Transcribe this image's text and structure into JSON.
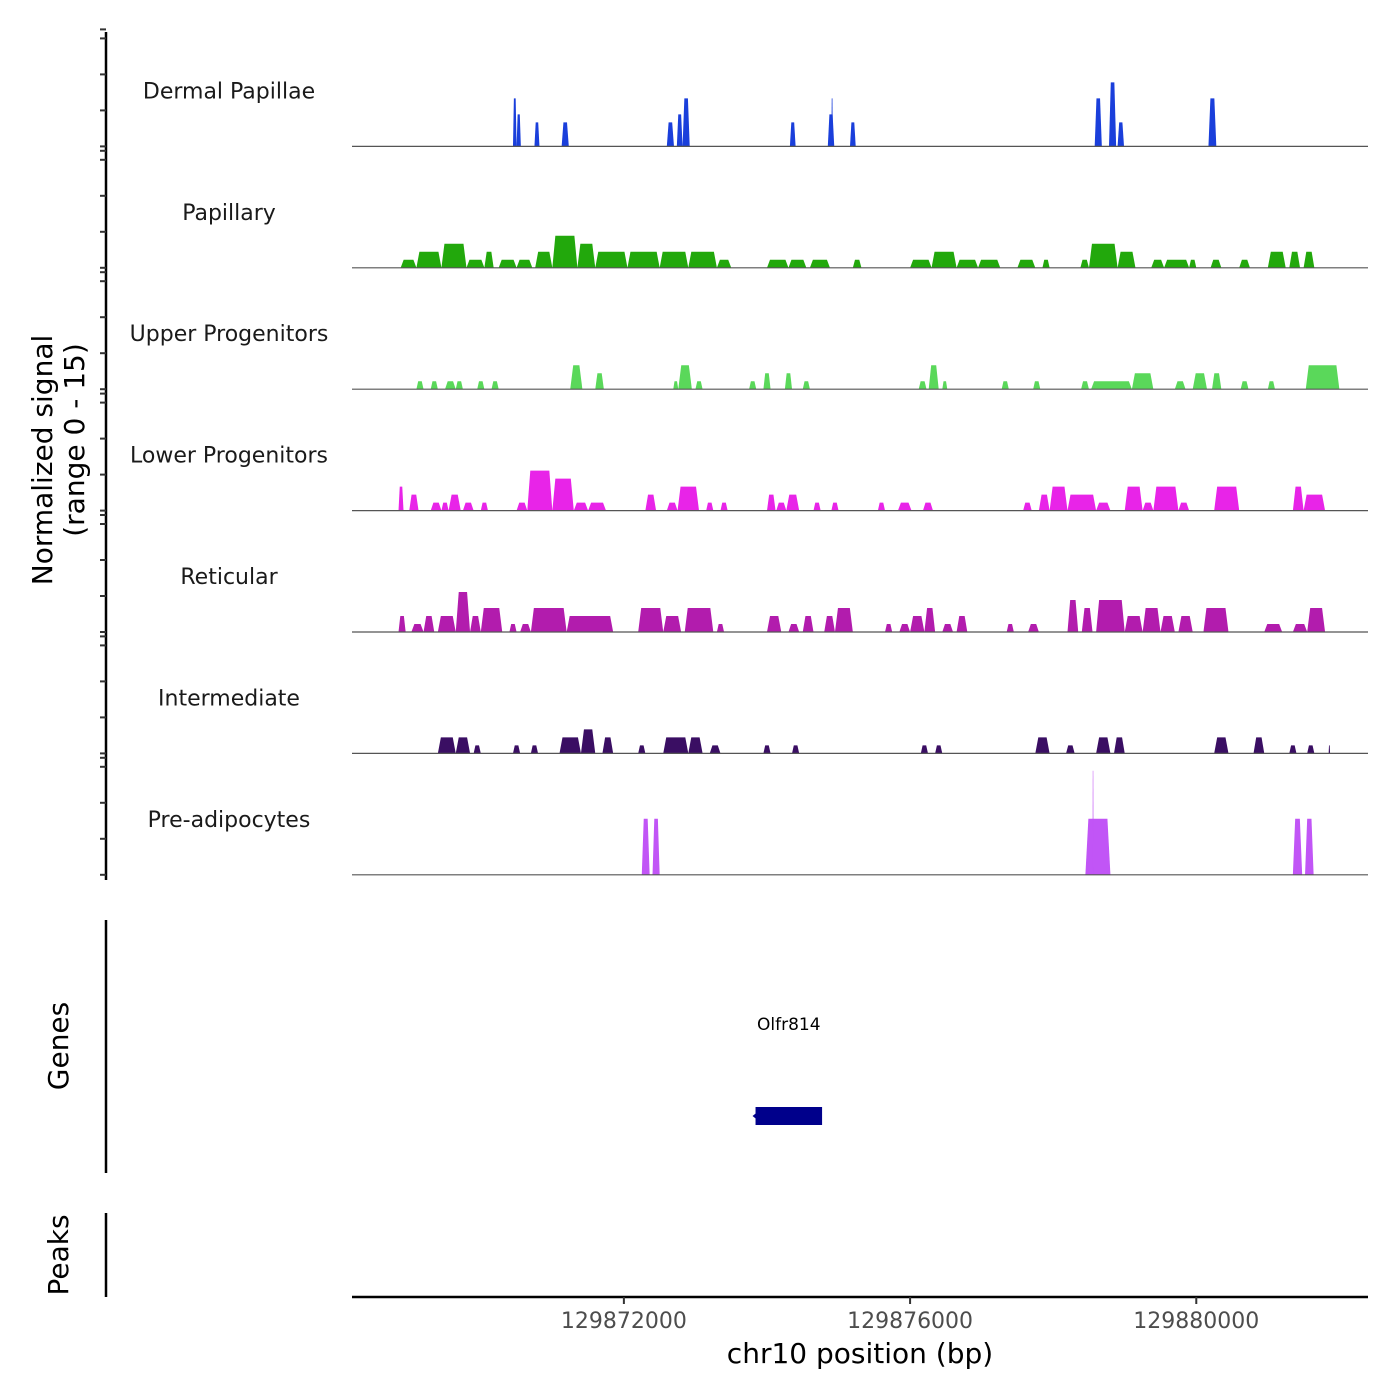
{
  "chart_data": {
    "type": "area",
    "title": "",
    "xlabel": "chr10 position (bp)",
    "ylabel": "Normalized signal\n(range 0 - 15)",
    "ylabel_lines": [
      "Normalized signal",
      "(range 0 - 15)"
    ],
    "ylim": [
      0,
      15
    ],
    "xlim": [
      129868200,
      129882400
    ],
    "x_ticks": [
      129872000,
      129876000,
      129880000
    ],
    "x_tick_labels": [
      "129872000",
      "129876000",
      "129880000"
    ],
    "grid": false,
    "legend": "none",
    "tracks": [
      {
        "name": "Dermal Papillae",
        "color": "#1a3fdb",
        "peaks": [
          [
            129870450,
            129870500,
            6
          ],
          [
            129870500,
            129870560,
            4
          ],
          [
            129870750,
            129870820,
            3
          ],
          [
            129871130,
            129871230,
            3
          ],
          [
            129872600,
            129872700,
            3
          ],
          [
            129872740,
            129872820,
            4
          ],
          [
            129872820,
            129872920,
            6
          ],
          [
            129874320,
            129874400,
            3
          ],
          [
            129874850,
            129874940,
            4
          ],
          [
            129874900,
            129874920,
            6
          ],
          [
            129875160,
            129875240,
            3
          ],
          [
            129878580,
            129878680,
            6
          ],
          [
            129878780,
            129878880,
            8
          ],
          [
            129878900,
            129878990,
            3
          ],
          [
            129880170,
            129880280,
            6
          ]
        ]
      },
      {
        "name": "Papillary",
        "color": "#22a80c",
        "peaks": [
          [
            129868880,
            129869100,
            1
          ],
          [
            129869100,
            129869450,
            2
          ],
          [
            129869450,
            129869800,
            3
          ],
          [
            129869800,
            129870050,
            1
          ],
          [
            129870050,
            129870180,
            2
          ],
          [
            129870250,
            129870500,
            1
          ],
          [
            129870500,
            129870720,
            1
          ],
          [
            129870760,
            129871000,
            2
          ],
          [
            129871000,
            129871350,
            4
          ],
          [
            129871350,
            129871600,
            3
          ],
          [
            129871600,
            129872050,
            2
          ],
          [
            129872050,
            129872500,
            2
          ],
          [
            129872500,
            129872900,
            2
          ],
          [
            129872900,
            129873300,
            2
          ],
          [
            129873300,
            129873500,
            1
          ],
          [
            129874000,
            129874300,
            1
          ],
          [
            129874300,
            129874550,
            1
          ],
          [
            129874600,
            129874880,
            1
          ],
          [
            129875200,
            129875320,
            1
          ],
          [
            129876000,
            129876300,
            1
          ],
          [
            129876300,
            129876650,
            2
          ],
          [
            129876650,
            129876950,
            1
          ],
          [
            129876950,
            129877260,
            1
          ],
          [
            129877500,
            129877750,
            1
          ],
          [
            129877850,
            129877950,
            1
          ],
          [
            129878380,
            129878500,
            1
          ],
          [
            129878500,
            129878900,
            3
          ],
          [
            129878900,
            129879150,
            2
          ],
          [
            129879370,
            129879550,
            1
          ],
          [
            129879550,
            129879900,
            1
          ],
          [
            129879900,
            129880000,
            1
          ],
          [
            129880200,
            129880350,
            1
          ],
          [
            129880600,
            129880750,
            1
          ],
          [
            129881000,
            129881250,
            2
          ],
          [
            129881300,
            129881450,
            2
          ],
          [
            129881500,
            129881650,
            2
          ]
        ]
      },
      {
        "name": "Upper Progenitors",
        "color": "#5ad85a",
        "peaks": [
          [
            129869100,
            129869200,
            1
          ],
          [
            129869300,
            129869400,
            1
          ],
          [
            129869500,
            129869650,
            1
          ],
          [
            129869650,
            129869750,
            1
          ],
          [
            129869950,
            129870050,
            1
          ],
          [
            129870150,
            129870250,
            1
          ],
          [
            129871250,
            129871420,
            3
          ],
          [
            129871600,
            129871720,
            2
          ],
          [
            129872690,
            129872760,
            1
          ],
          [
            129872760,
            129872950,
            3
          ],
          [
            129873000,
            129873100,
            1
          ],
          [
            129873750,
            129873850,
            1
          ],
          [
            129873950,
            129874050,
            2
          ],
          [
            129874250,
            129874350,
            2
          ],
          [
            129874500,
            129874600,
            1
          ],
          [
            129876120,
            129876230,
            1
          ],
          [
            129876260,
            129876400,
            3
          ],
          [
            129876450,
            129876520,
            1
          ],
          [
            129877280,
            129877380,
            1
          ],
          [
            129877720,
            129877820,
            1
          ],
          [
            129878390,
            129878500,
            1
          ],
          [
            129878530,
            129879100,
            1
          ],
          [
            129879100,
            129879400,
            2
          ],
          [
            129879700,
            129879850,
            1
          ],
          [
            129879950,
            129880150,
            2
          ],
          [
            129880220,
            129880350,
            2
          ],
          [
            129880620,
            129880730,
            1
          ],
          [
            129881000,
            129881100,
            1
          ],
          [
            129881530,
            129882000,
            3
          ]
        ]
      },
      {
        "name": "Lower Progenitors",
        "color": "#e824e8",
        "peaks": [
          [
            129868850,
            129868920,
            3
          ],
          [
            129869000,
            129869130,
            2
          ],
          [
            129869300,
            129869450,
            1
          ],
          [
            129869450,
            129869550,
            1
          ],
          [
            129869550,
            129869720,
            2
          ],
          [
            129869750,
            129869900,
            1
          ],
          [
            129870000,
            129870100,
            1
          ],
          [
            129870500,
            129870650,
            1
          ],
          [
            129870650,
            129871000,
            5
          ],
          [
            129871000,
            129871300,
            4
          ],
          [
            129871300,
            129871500,
            1
          ],
          [
            129871500,
            129871750,
            1
          ],
          [
            129872300,
            129872450,
            2
          ],
          [
            129872600,
            129872750,
            1
          ],
          [
            129872750,
            129873050,
            3
          ],
          [
            129873150,
            129873250,
            1
          ],
          [
            129873350,
            129873450,
            1
          ],
          [
            129874000,
            129874120,
            2
          ],
          [
            129874130,
            129874270,
            1
          ],
          [
            129874270,
            129874450,
            2
          ],
          [
            129874650,
            129874750,
            1
          ],
          [
            129874900,
            129875000,
            1
          ],
          [
            129875550,
            129875650,
            1
          ],
          [
            129875830,
            129876020,
            1
          ],
          [
            129876180,
            129876320,
            1
          ],
          [
            129877580,
            129877700,
            1
          ],
          [
            129877800,
            129877950,
            2
          ],
          [
            129877950,
            129878200,
            3
          ],
          [
            129878200,
            129878600,
            2
          ],
          [
            129878600,
            129878800,
            1
          ],
          [
            129879000,
            129879250,
            3
          ],
          [
            129879250,
            129879400,
            1
          ],
          [
            129879400,
            129879750,
            3
          ],
          [
            129879750,
            129879900,
            1
          ],
          [
            129880250,
            129880600,
            3
          ],
          [
            129881350,
            129881500,
            3
          ],
          [
            129881500,
            129881800,
            2
          ]
        ]
      },
      {
        "name": "Reticular",
        "color": "#b21cad",
        "peaks": [
          [
            129868850,
            129868950,
            2
          ],
          [
            129869030,
            129869200,
            1
          ],
          [
            129869200,
            129869350,
            2
          ],
          [
            129869400,
            129869650,
            2
          ],
          [
            129869650,
            129869850,
            5
          ],
          [
            129869850,
            129870000,
            2
          ],
          [
            129870000,
            129870300,
            3
          ],
          [
            129870400,
            129870500,
            1
          ],
          [
            129870550,
            129870700,
            1
          ],
          [
            129870700,
            129871200,
            3
          ],
          [
            129871200,
            129871850,
            2
          ],
          [
            129872200,
            129872550,
            3
          ],
          [
            129872550,
            129872800,
            2
          ],
          [
            129872850,
            129873250,
            3
          ],
          [
            129873300,
            129873400,
            1
          ],
          [
            129874000,
            129874200,
            2
          ],
          [
            129874300,
            129874450,
            1
          ],
          [
            129874500,
            129874650,
            2
          ],
          [
            129874800,
            129874950,
            2
          ],
          [
            129874950,
            129875200,
            3
          ],
          [
            129875650,
            129875750,
            1
          ],
          [
            129875850,
            129876000,
            1
          ],
          [
            129876000,
            129876200,
            2
          ],
          [
            129876200,
            129876350,
            3
          ],
          [
            129876450,
            129876600,
            1
          ],
          [
            129876650,
            129876800,
            2
          ],
          [
            129877350,
            129877450,
            1
          ],
          [
            129877650,
            129877800,
            1
          ],
          [
            129878200,
            129878350,
            4
          ],
          [
            129878400,
            129878550,
            3
          ],
          [
            129878600,
            129879000,
            4
          ],
          [
            129879000,
            129879250,
            2
          ],
          [
            129879250,
            129879500,
            3
          ],
          [
            129879500,
            129879700,
            2
          ],
          [
            129879750,
            129879950,
            2
          ],
          [
            129880100,
            129880450,
            3
          ],
          [
            129880950,
            129881200,
            1
          ],
          [
            129881350,
            129881550,
            1
          ],
          [
            129881550,
            129881800,
            3
          ]
        ]
      },
      {
        "name": "Intermediate",
        "color": "#3a0e63",
        "peaks": [
          [
            129869400,
            129869650,
            2
          ],
          [
            129869650,
            129869850,
            2
          ],
          [
            129869900,
            129870000,
            1
          ],
          [
            129870450,
            129870550,
            1
          ],
          [
            129870700,
            129870800,
            1
          ],
          [
            129871100,
            129871400,
            2
          ],
          [
            129871400,
            129871600,
            3
          ],
          [
            129871700,
            129871850,
            2
          ],
          [
            129872200,
            129872300,
            1
          ],
          [
            129872550,
            129872900,
            2
          ],
          [
            129872900,
            129873100,
            2
          ],
          [
            129873200,
            129873350,
            1
          ],
          [
            129873950,
            129874050,
            1
          ],
          [
            129874350,
            129874450,
            1
          ],
          [
            129876150,
            129876250,
            1
          ],
          [
            129876350,
            129876450,
            1
          ],
          [
            129877750,
            129877950,
            2
          ],
          [
            129878180,
            129878300,
            1
          ],
          [
            129878600,
            129878800,
            2
          ],
          [
            129878850,
            129879000,
            2
          ],
          [
            129880250,
            129880450,
            2
          ],
          [
            129880800,
            129880950,
            2
          ],
          [
            129881300,
            129881400,
            1
          ],
          [
            129881550,
            129881650,
            1
          ],
          [
            129881850,
            129881870,
            1
          ]
        ]
      },
      {
        "name": "Pre-adipocytes",
        "color": "#c155f6",
        "peaks": [
          [
            129872250,
            129872360,
            7
          ],
          [
            129872400,
            129872500,
            7
          ],
          [
            129878450,
            129878800,
            7
          ],
          [
            129878550,
            129878560,
            13
          ],
          [
            129881350,
            129881480,
            7
          ],
          [
            129881520,
            129881640,
            7
          ]
        ]
      }
    ],
    "genes_track": {
      "label": "Genes",
      "genes": [
        {
          "name": "Olfr814",
          "start": 129873840,
          "end": 129874770,
          "strand": "-",
          "color": "#00008b"
        }
      ]
    },
    "peaks_track": {
      "label": "Peaks",
      "peaks": []
    }
  }
}
